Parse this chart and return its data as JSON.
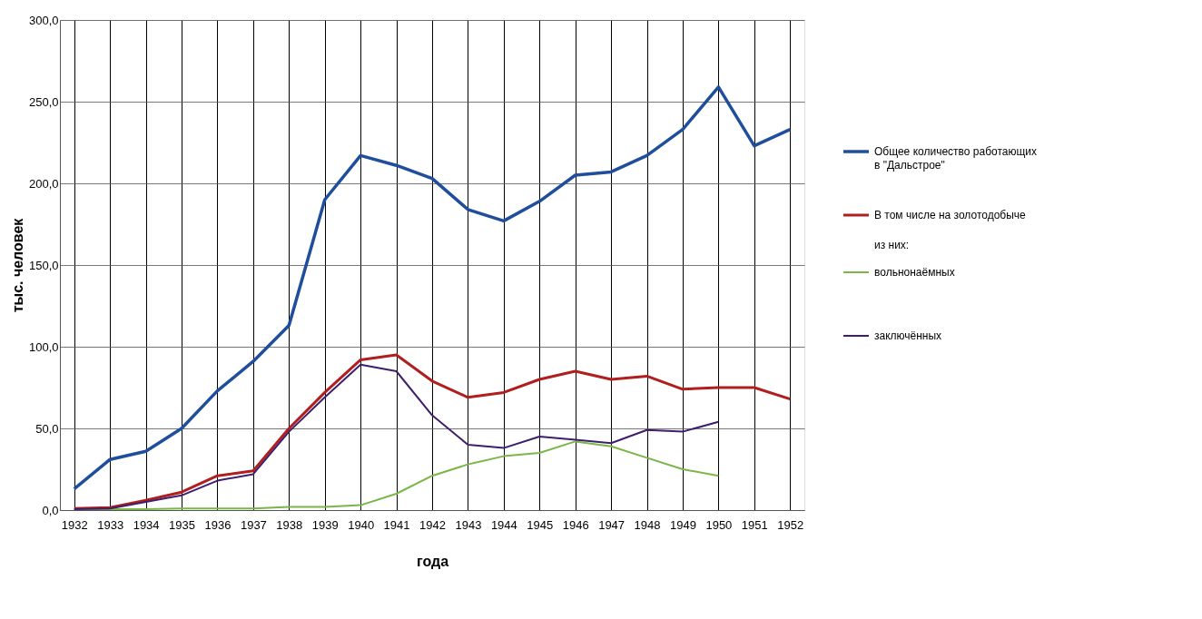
{
  "chart_data": {
    "type": "line",
    "xlabel": "года",
    "ylabel": "тыс. человек",
    "categories": [
      "1932",
      "1933",
      "1934",
      "1935",
      "1936",
      "1937",
      "1938",
      "1939",
      "1940",
      "1941",
      "1942",
      "1943",
      "1944",
      "1945",
      "1946",
      "1947",
      "1948",
      "1949",
      "1950",
      "1951",
      "1952"
    ],
    "series": [
      {
        "name": "Общее количество работающих в \"Дальстрое\"",
        "color": "#1f4e9c",
        "values": [
          13,
          31,
          36,
          50,
          73,
          91,
          113,
          190,
          217,
          211,
          203,
          184,
          177,
          189,
          205,
          207,
          217,
          233,
          259,
          223,
          233
        ]
      },
      {
        "name": "В том числе на золотодобыче",
        "color": "#b01e1e",
        "values": [
          1,
          1.5,
          6,
          11,
          21,
          24,
          50,
          72,
          92,
          95,
          79,
          69,
          72,
          80,
          85,
          80,
          82,
          74,
          75,
          75,
          68
        ]
      },
      {
        "name": "вольнонаёмных",
        "color": "#7ab648",
        "values": [
          0.5,
          0.5,
          0.5,
          1,
          1,
          1,
          2,
          2,
          3,
          10,
          21,
          28,
          33,
          35,
          42,
          39,
          32,
          25,
          21,
          null,
          null
        ]
      },
      {
        "name": "заключённых",
        "color": "#3d1f6e",
        "values": [
          0.5,
          1,
          5,
          9,
          18,
          22,
          48,
          69,
          89,
          85,
          58,
          40,
          38,
          45,
          43,
          41,
          49,
          48,
          54,
          null,
          null
        ]
      }
    ],
    "annotations": [
      "из них:"
    ],
    "ylim": [
      0,
      300
    ],
    "yticks": [
      {
        "value": 0,
        "label": "0,0"
      },
      {
        "value": 50,
        "label": "50,0"
      },
      {
        "value": 100,
        "label": "100,0"
      },
      {
        "value": 150,
        "label": "150,0"
      },
      {
        "value": 200,
        "label": "200,0"
      },
      {
        "value": 250,
        "label": "250,0"
      },
      {
        "value": 300,
        "label": "300,0"
      }
    ],
    "grid": true,
    "legend": "right",
    "marker": "none",
    "line_style": "solid"
  }
}
